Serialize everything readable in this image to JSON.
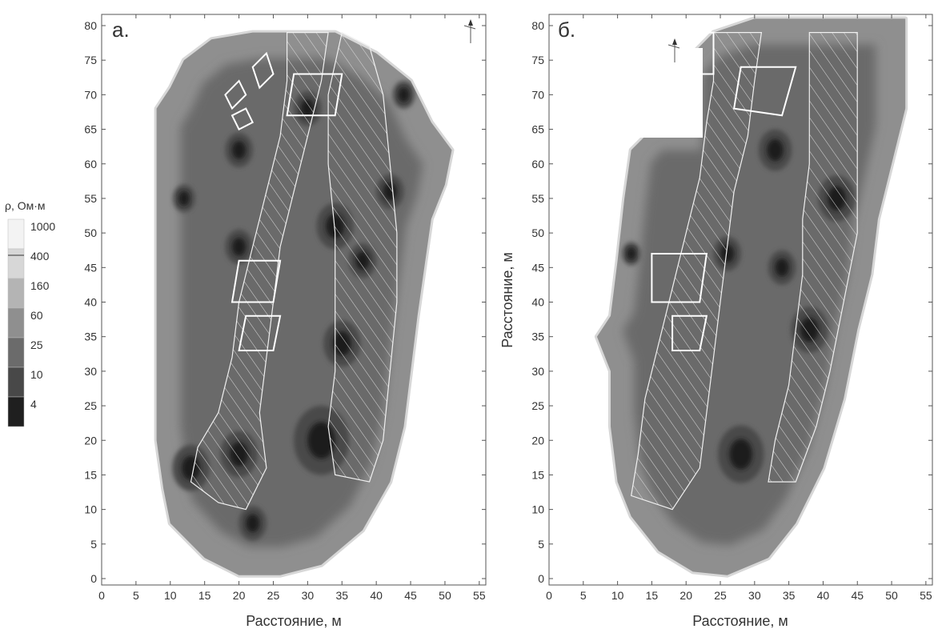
{
  "chart_data": [
    {
      "type": "heatmap",
      "panel_label": "а.",
      "xlabel": "Расстояние, м",
      "ylabel": "",
      "xlim": [
        0,
        55
      ],
      "ylim": [
        0,
        80
      ],
      "xticks": [
        0,
        5,
        10,
        15,
        20,
        25,
        30,
        35,
        40,
        45,
        50,
        55
      ],
      "yticks": [
        0,
        5,
        10,
        15,
        20,
        25,
        30,
        35,
        40,
        45,
        50,
        55,
        60,
        65,
        70,
        75,
        80
      ],
      "grid": false,
      "survey_outline": [
        [
          8,
          68
        ],
        [
          10,
          71
        ],
        [
          12,
          75
        ],
        [
          16,
          78
        ],
        [
          22,
          79
        ],
        [
          34,
          79
        ],
        [
          40,
          76
        ],
        [
          45,
          72
        ],
        [
          48,
          66
        ],
        [
          51,
          62
        ],
        [
          50,
          57
        ],
        [
          48,
          52
        ],
        [
          47,
          45
        ],
        [
          46,
          38
        ],
        [
          45,
          30
        ],
        [
          44,
          22
        ],
        [
          42,
          14
        ],
        [
          38,
          7
        ],
        [
          32,
          2
        ],
        [
          26,
          0.5
        ],
        [
          20,
          0.5
        ],
        [
          15,
          3
        ],
        [
          10,
          8
        ],
        [
          9,
          13
        ],
        [
          8,
          20
        ],
        [
          8,
          27
        ],
        [
          8,
          35
        ],
        [
          8,
          48
        ],
        [
          8,
          58
        ]
      ],
      "hatched_zones": [
        [
          [
            27,
            79
          ],
          [
            33,
            79
          ],
          [
            32,
            72
          ],
          [
            30,
            64
          ],
          [
            28,
            56
          ],
          [
            26,
            48
          ],
          [
            25,
            40
          ],
          [
            24,
            32
          ],
          [
            23,
            24
          ],
          [
            24,
            16
          ],
          [
            21,
            10
          ],
          [
            17,
            11
          ],
          [
            13,
            14
          ],
          [
            14,
            19
          ],
          [
            17,
            24
          ],
          [
            19,
            32
          ],
          [
            20,
            40
          ],
          [
            22,
            48
          ],
          [
            24,
            56
          ],
          [
            26,
            64
          ],
          [
            27,
            72
          ]
        ],
        [
          [
            35,
            79
          ],
          [
            39,
            77
          ],
          [
            41,
            70
          ],
          [
            42,
            60
          ],
          [
            43,
            50
          ],
          [
            43,
            40
          ],
          [
            42,
            30
          ],
          [
            41,
            20
          ],
          [
            39,
            14
          ],
          [
            34,
            15
          ],
          [
            33,
            22
          ],
          [
            34,
            30
          ],
          [
            34,
            40
          ],
          [
            34,
            50
          ],
          [
            33,
            60
          ],
          [
            33,
            70
          ]
        ]
      ],
      "rectangles": [
        [
          [
            22,
            74
          ],
          [
            24,
            76
          ],
          [
            25,
            73
          ],
          [
            23,
            71
          ]
        ],
        [
          [
            18,
            70
          ],
          [
            20,
            72
          ],
          [
            21,
            70
          ],
          [
            19,
            68
          ]
        ],
        [
          [
            19,
            67
          ],
          [
            21,
            68
          ],
          [
            22,
            66
          ],
          [
            20,
            65
          ]
        ],
        [
          [
            28,
            73
          ],
          [
            35,
            73
          ],
          [
            34,
            67
          ],
          [
            27,
            67
          ]
        ],
        [
          [
            20,
            46
          ],
          [
            26,
            46
          ],
          [
            25,
            40
          ],
          [
            19,
            40
          ]
        ],
        [
          [
            21,
            38
          ],
          [
            26,
            38
          ],
          [
            25,
            33
          ],
          [
            20,
            33
          ]
        ]
      ],
      "dark_spots": [
        [
          12,
          55,
          1.2
        ],
        [
          13,
          16,
          2
        ],
        [
          20,
          18,
          2
        ],
        [
          22,
          8,
          1.5
        ],
        [
          20,
          62,
          1.5
        ],
        [
          30,
          68,
          1.5
        ],
        [
          34,
          51,
          2
        ],
        [
          35,
          34,
          2
        ],
        [
          32,
          20,
          3
        ],
        [
          42,
          56,
          1.5
        ],
        [
          44,
          70,
          1.2
        ],
        [
          20,
          48,
          1.5
        ],
        [
          38,
          46,
          1.5
        ]
      ]
    },
    {
      "type": "heatmap",
      "panel_label": "б.",
      "xlabel": "Расстояние, м",
      "ylabel": "Расстояние, м",
      "xlim": [
        0,
        55
      ],
      "ylim": [
        0,
        80
      ],
      "xticks": [
        0,
        5,
        10,
        15,
        20,
        25,
        30,
        35,
        40,
        45,
        50,
        55
      ],
      "yticks": [
        0,
        5,
        10,
        15,
        20,
        25,
        30,
        35,
        40,
        45,
        50,
        55,
        60,
        65,
        70,
        75,
        80
      ],
      "grid": false,
      "survey_outline": [
        [
          21,
          76
        ],
        [
          24,
          79
        ],
        [
          30,
          81
        ],
        [
          38,
          81
        ],
        [
          45,
          81
        ],
        [
          52,
          81
        ],
        [
          52,
          75
        ],
        [
          52,
          68
        ],
        [
          50,
          60
        ],
        [
          48,
          52
        ],
        [
          47,
          44
        ],
        [
          45,
          36
        ],
        [
          43,
          26
        ],
        [
          40,
          16
        ],
        [
          36,
          8
        ],
        [
          32,
          3
        ],
        [
          26,
          0.5
        ],
        [
          21,
          1
        ],
        [
          16,
          4
        ],
        [
          12,
          9
        ],
        [
          10,
          14
        ],
        [
          9,
          22
        ],
        [
          9,
          30
        ],
        [
          7,
          35
        ],
        [
          9,
          38
        ],
        [
          10,
          46
        ],
        [
          11,
          55
        ],
        [
          12,
          62
        ],
        [
          14,
          64
        ],
        [
          21,
          64
        ]
      ],
      "hatched_zones": [
        [
          [
            24,
            79
          ],
          [
            31,
            79
          ],
          [
            30,
            72
          ],
          [
            29,
            64
          ],
          [
            27,
            56
          ],
          [
            26,
            48
          ],
          [
            25,
            40
          ],
          [
            24,
            32
          ],
          [
            23,
            24
          ],
          [
            22,
            16
          ],
          [
            18,
            10
          ],
          [
            12,
            12
          ],
          [
            13,
            18
          ],
          [
            14,
            26
          ],
          [
            16,
            34
          ],
          [
            18,
            42
          ],
          [
            20,
            50
          ],
          [
            22,
            58
          ],
          [
            23,
            66
          ],
          [
            24,
            72
          ]
        ],
        [
          [
            38,
            79
          ],
          [
            45,
            79
          ],
          [
            45,
            70
          ],
          [
            45,
            60
          ],
          [
            45,
            50
          ],
          [
            43,
            40
          ],
          [
            41,
            30
          ],
          [
            39,
            22
          ],
          [
            36,
            14
          ],
          [
            32,
            14
          ],
          [
            33,
            20
          ],
          [
            35,
            28
          ],
          [
            36,
            36
          ],
          [
            37,
            44
          ],
          [
            37,
            52
          ],
          [
            38,
            60
          ],
          [
            38,
            70
          ]
        ]
      ],
      "rectangles": [
        [
          [
            28,
            74
          ],
          [
            36,
            74
          ],
          [
            34,
            67
          ],
          [
            27,
            68
          ]
        ],
        [
          [
            15,
            47
          ],
          [
            23,
            47
          ],
          [
            22,
            40
          ],
          [
            15,
            40
          ]
        ],
        [
          [
            18,
            38
          ],
          [
            23,
            38
          ],
          [
            22,
            33
          ],
          [
            18,
            33
          ]
        ],
        [
          [
            21,
            79
          ],
          [
            24,
            79
          ],
          [
            24,
            73
          ],
          [
            21,
            73
          ]
        ]
      ],
      "dark_spots": [
        [
          28,
          18,
          2.5
        ],
        [
          42,
          55,
          2
        ],
        [
          38,
          36,
          2
        ],
        [
          33,
          62,
          1.8
        ],
        [
          12,
          47,
          1
        ],
        [
          26,
          47,
          1.5
        ],
        [
          34,
          45,
          1.5
        ]
      ]
    }
  ],
  "legend": {
    "title": "ρ, Ом·м",
    "levels": [
      "1000",
      "400",
      "160",
      "60",
      "25",
      "10",
      "4"
    ],
    "colors": [
      "#f3f3f3",
      "#d7d7d7",
      "#b4b4b4",
      "#8f8f8f",
      "#6b6b6b",
      "#484848",
      "#1f1f1f"
    ]
  },
  "colors": {
    "field_base": "#6e6e6e",
    "hatch": "#d8d8d8",
    "outline": "#ffffff"
  }
}
